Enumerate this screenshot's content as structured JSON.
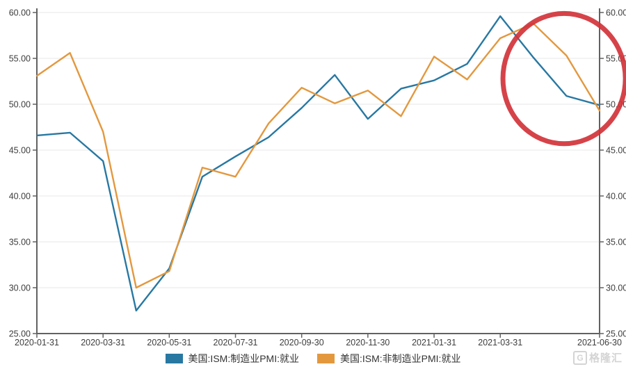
{
  "chart_data": {
    "type": "line",
    "title": "",
    "xlabel": "",
    "ylabel": "",
    "x": [
      "2020-01-31",
      "2020-02-29",
      "2020-03-31",
      "2020-04-30",
      "2020-05-31",
      "2020-06-30",
      "2020-07-31",
      "2020-08-31",
      "2020-09-30",
      "2020-10-31",
      "2020-11-30",
      "2020-12-31",
      "2021-01-31",
      "2021-02-28",
      "2021-03-31",
      "2021-04-30",
      "2021-05-31",
      "2021-06-30"
    ],
    "series": [
      {
        "name": "美国:ISM:制造业PMI:就业",
        "color": "#2878a2",
        "values": [
          46.6,
          46.9,
          43.8,
          27.5,
          32.1,
          42.1,
          44.3,
          46.4,
          49.6,
          53.2,
          48.4,
          51.7,
          52.6,
          54.4,
          59.6,
          55.1,
          50.9,
          49.9
        ]
      },
      {
        "name": "美国:ISM:非制造业PMI:就业",
        "color": "#e3983e",
        "values": [
          53.1,
          55.6,
          47.0,
          30.0,
          31.8,
          43.1,
          42.1,
          47.9,
          51.8,
          50.1,
          51.5,
          48.7,
          55.2,
          52.7,
          57.2,
          58.8,
          55.3,
          49.3
        ]
      }
    ],
    "ylim": [
      25,
      60
    ],
    "y_ticks": [
      25,
      30,
      35,
      40,
      45,
      50,
      55,
      60
    ],
    "y_tick_labels": [
      "25.00",
      "30.00",
      "35.00",
      "40.00",
      "45.00",
      "50.00",
      "55.00",
      "60.00"
    ],
    "x_tick_indices": [
      0,
      2,
      4,
      6,
      8,
      10,
      12,
      14,
      17
    ],
    "x_tick_labels": [
      "2020-01-31",
      "2020-03-31",
      "2020-05-31",
      "2020-07-31",
      "2020-09-30",
      "2020-11-30",
      "2021-01-31",
      "2021-03-31",
      "2021-06-30"
    ],
    "dual_y_axis": true,
    "grid": true,
    "legend_position": "bottom",
    "annotation": {
      "shape": "ellipse",
      "center_index": 15.93,
      "center_value": 52.8,
      "radius_index": 1.85,
      "radius_value": 7.1,
      "color": "#d13339",
      "stroke_width": 7
    }
  },
  "colors": {
    "grid": "#ececec",
    "axis": "#616161",
    "tick_label": "#3d3d3d"
  },
  "watermark": {
    "logo_letter": "G",
    "text": "格隆汇"
  }
}
